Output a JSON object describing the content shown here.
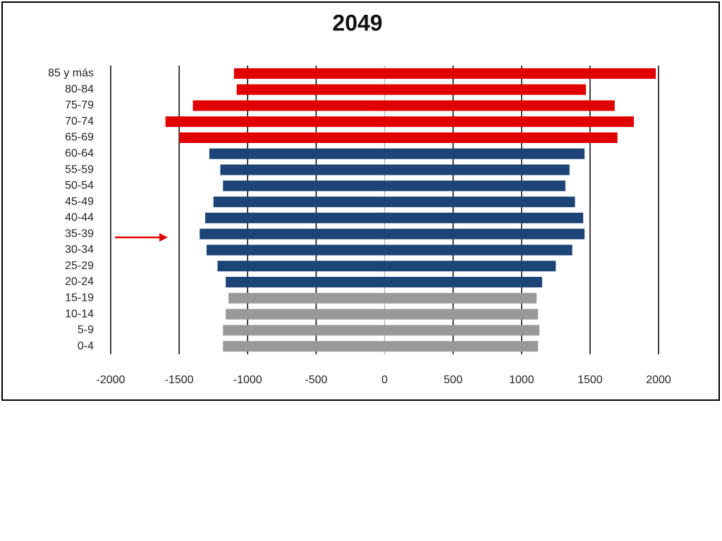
{
  "chart_data": {
    "type": "pyramid",
    "title": "2049",
    "categories": [
      "85 y más",
      "80-84",
      "75-79",
      "70-74",
      "65-69",
      "60-64",
      "55-59",
      "50-54",
      "45-49",
      "40-44",
      "35-39",
      "30-34",
      "25-29",
      "20-24",
      "15-19",
      "10-14",
      "5-9",
      "0-4"
    ],
    "bar_colors": [
      "#e00000",
      "#e00000",
      "#e00000",
      "#e00000",
      "#e00000",
      "#1d4477",
      "#1d4477",
      "#1d4477",
      "#1d4477",
      "#1d4477",
      "#1d4477",
      "#1d4477",
      "#1d4477",
      "#1d4477",
      "#999999",
      "#999999",
      "#999999",
      "#999999"
    ],
    "series": [
      {
        "values": [
          -1100,
          -1080,
          -1400,
          -1600,
          -1500,
          -1280,
          -1200,
          -1180,
          -1250,
          -1310,
          -1350,
          -1300,
          -1220,
          -1160,
          -1140,
          -1160,
          -1180,
          -1180
        ]
      },
      {
        "values": [
          1980,
          1470,
          1680,
          1820,
          1700,
          1460,
          1350,
          1320,
          1390,
          1450,
          1460,
          1370,
          1250,
          1150,
          1110,
          1120,
          1130,
          1120
        ]
      }
    ],
    "xlim": [
      -2000,
      2000
    ],
    "xticks": [
      -2000,
      -1500,
      -1000,
      -500,
      0,
      500,
      1000,
      1500,
      2000
    ],
    "grid": true
  }
}
